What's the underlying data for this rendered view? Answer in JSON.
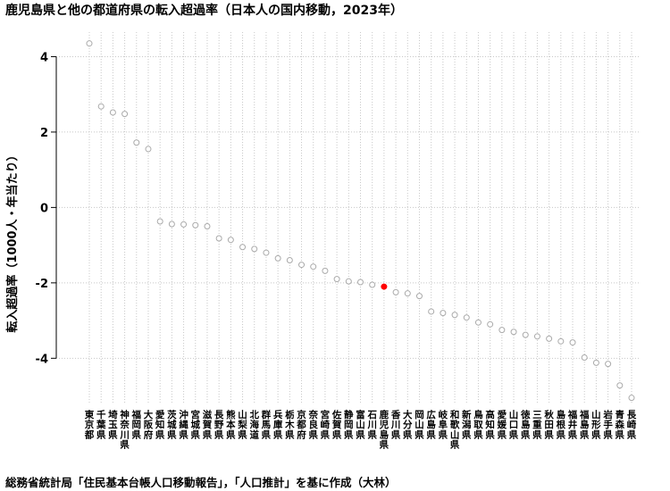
{
  "chart_data": {
    "type": "scatter",
    "title": "鹿児島県と他の都道府県の転入超過率（日本人の国内移動，2023年）",
    "xlabel": "",
    "ylabel": "転入超過率（1000人・年当たり）",
    "caption": "総務省統計局「住民基本台帳人口移動報告」，「人口推計」を基に作成（大林）",
    "ylim": [
      -5.2,
      4.65
    ],
    "yticks": [
      -4,
      -2,
      0,
      2,
      4
    ],
    "grid": true,
    "highlight": "鹿児島県",
    "colors": {
      "point": "#aaaaaa",
      "highlight": "#ff0000",
      "grid": "#c8c8c8",
      "axis": "#000000"
    },
    "categories": [
      "東京都",
      "千葉県",
      "埼玉県",
      "神奈川県",
      "福岡県",
      "大阪府",
      "愛知県",
      "茨城県",
      "沖縄県",
      "宮城県",
      "滋賀県",
      "長野県",
      "熊本県",
      "山梨県",
      "北海道",
      "群馬県",
      "兵庫県",
      "栃木県",
      "京都府",
      "奈良県",
      "宮崎県",
      "佐賀県",
      "静岡県",
      "富山県",
      "石川県",
      "鹿児島県",
      "香川県",
      "大分県",
      "岡山県",
      "広島県",
      "岐阜県",
      "和歌山県",
      "新潟県",
      "鳥取県",
      "高知県",
      "愛媛県",
      "山口県",
      "徳島県",
      "三重県",
      "秋田県",
      "島根県",
      "福井県",
      "福島県",
      "山形県",
      "岩手県",
      "青森県",
      "長崎県"
    ],
    "values": [
      4.35,
      2.68,
      2.52,
      2.48,
      1.72,
      1.55,
      -0.37,
      -0.44,
      -0.45,
      -0.47,
      -0.5,
      -0.82,
      -0.86,
      -1.05,
      -1.1,
      -1.2,
      -1.35,
      -1.4,
      -1.52,
      -1.57,
      -1.68,
      -1.9,
      -1.96,
      -1.98,
      -2.05,
      -2.1,
      -2.25,
      -2.28,
      -2.35,
      -2.76,
      -2.8,
      -2.85,
      -2.92,
      -3.05,
      -3.1,
      -3.25,
      -3.3,
      -3.38,
      -3.42,
      -3.48,
      -3.55,
      -3.58,
      -3.98,
      -4.12,
      -4.15,
      -4.72,
      -5.05
    ]
  }
}
